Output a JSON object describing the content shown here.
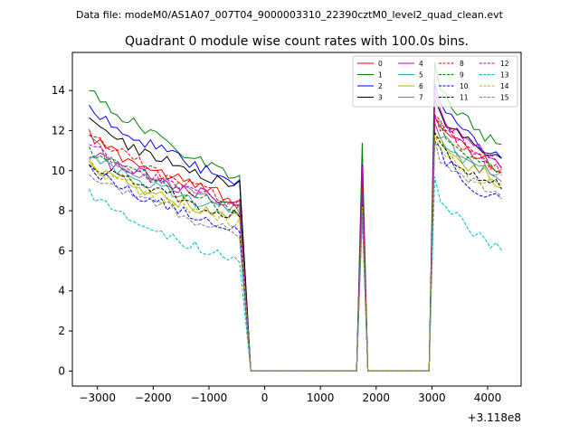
{
  "chart_data": {
    "type": "line",
    "suptitle": "Data file: modeM0/AS1A07_007T04_9000003310_22390cztM0_level2_quad_clean.evt",
    "title": "Quadrant 0 module wise count rates with 100.0s bins.",
    "xlabel": "",
    "ylabel": "",
    "x_offset_label": "+3.118e8",
    "xlim": [
      -3450,
      4600
    ],
    "ylim": [
      -0.75,
      15.9
    ],
    "xticks": [
      -3000,
      -2000,
      -1000,
      0,
      1000,
      2000,
      3000,
      4000
    ],
    "xtick_labels": [
      "−3000",
      "−2000",
      "−1000",
      "0",
      "1000",
      "2000",
      "3000",
      "4000"
    ],
    "yticks": [
      0,
      2,
      4,
      6,
      8,
      10,
      12,
      14
    ],
    "ytick_labels": [
      "0",
      "2",
      "4",
      "6",
      "8",
      "10",
      "12",
      "14"
    ],
    "legend_position": "top-right",
    "segments": {
      "seg1": {
        "start": -3150,
        "step": 100,
        "count": 28
      },
      "gap1": [
        -250,
        1550
      ],
      "peak": [
        1650,
        1750,
        1850
      ],
      "gap2": [
        1950,
        2950
      ],
      "seg2": {
        "start": 3050,
        "step": 100,
        "count": 13
      }
    },
    "series": [
      {
        "name": "0",
        "color": "#ff0000",
        "dash": false,
        "start": 11.8,
        "end": 8.5,
        "peak": 9.0,
        "seg2_start": 12.8,
        "seg2_end": 10.0,
        "noise": 0.35
      },
      {
        "name": "1",
        "color": "#008000",
        "dash": false,
        "start": 14.2,
        "end": 9.6,
        "peak": 11.4,
        "seg2_start": 15.1,
        "seg2_end": 11.1,
        "noise": 0.3
      },
      {
        "name": "2",
        "color": "#0000ff",
        "dash": false,
        "start": 13.3,
        "end": 9.3,
        "peak": 10.3,
        "seg2_start": 14.1,
        "seg2_end": 10.6,
        "noise": 0.3
      },
      {
        "name": "3",
        "color": "#000000",
        "dash": false,
        "start": 12.5,
        "end": 9.2,
        "peak": 9.8,
        "seg2_start": 13.5,
        "seg2_end": 10.5,
        "noise": 0.3
      },
      {
        "name": "4",
        "color": "#c000c0",
        "dash": false,
        "start": 11.0,
        "end": 8.3,
        "peak": 10.2,
        "seg2_start": 13.7,
        "seg2_end": 10.4,
        "noise": 0.35
      },
      {
        "name": "5",
        "color": "#20b2aa",
        "dash": false,
        "start": 10.7,
        "end": 7.9,
        "peak": 8.6,
        "seg2_start": 12.2,
        "seg2_end": 9.6,
        "noise": 0.35
      },
      {
        "name": "6",
        "color": "#b5b500",
        "dash": false,
        "start": 10.4,
        "end": 7.6,
        "peak": 8.4,
        "seg2_start": 12.0,
        "seg2_end": 9.4,
        "noise": 0.35
      },
      {
        "name": "7",
        "color": "#7f7f7f",
        "dash": false,
        "start": 11.5,
        "end": 8.0,
        "peak": 8.9,
        "seg2_start": 12.4,
        "seg2_end": 9.6,
        "noise": 0.35
      },
      {
        "name": "8",
        "color": "#ff0000",
        "dash": true,
        "start": 12.0,
        "end": 8.4,
        "peak": 9.2,
        "seg2_start": 13.1,
        "seg2_end": 10.0,
        "noise": 0.35
      },
      {
        "name": "9",
        "color": "#008000",
        "dash": true,
        "start": 11.2,
        "end": 8.0,
        "peak": 8.8,
        "seg2_start": 12.7,
        "seg2_end": 9.8,
        "noise": 0.35
      },
      {
        "name": "10",
        "color": "#0000ff",
        "dash": true,
        "start": 10.1,
        "end": 7.1,
        "peak": 8.0,
        "seg2_start": 11.6,
        "seg2_end": 8.4,
        "noise": 0.35
      },
      {
        "name": "11",
        "color": "#000000",
        "dash": true,
        "start": 10.6,
        "end": 7.7,
        "peak": 8.3,
        "seg2_start": 12.1,
        "seg2_end": 9.1,
        "noise": 0.35
      },
      {
        "name": "12",
        "color": "#c000c0",
        "dash": true,
        "start": 11.4,
        "end": 8.1,
        "peak": 9.0,
        "seg2_start": 12.9,
        "seg2_end": 10.2,
        "noise": 0.35
      },
      {
        "name": "13",
        "color": "#00bfbf",
        "dash": true,
        "start": 9.0,
        "end": 5.4,
        "peak": 7.6,
        "seg2_start": 9.4,
        "seg2_end": 6.0,
        "noise": 0.3
      },
      {
        "name": "14",
        "color": "#b5b500",
        "dash": true,
        "start": 10.3,
        "end": 7.4,
        "peak": 8.2,
        "seg2_start": 11.8,
        "seg2_end": 9.0,
        "noise": 0.35
      },
      {
        "name": "15",
        "color": "#7f7f7f",
        "dash": true,
        "start": 10.0,
        "end": 6.9,
        "peak": 7.9,
        "seg2_start": 11.2,
        "seg2_end": 8.6,
        "noise": 0.35
      }
    ]
  }
}
